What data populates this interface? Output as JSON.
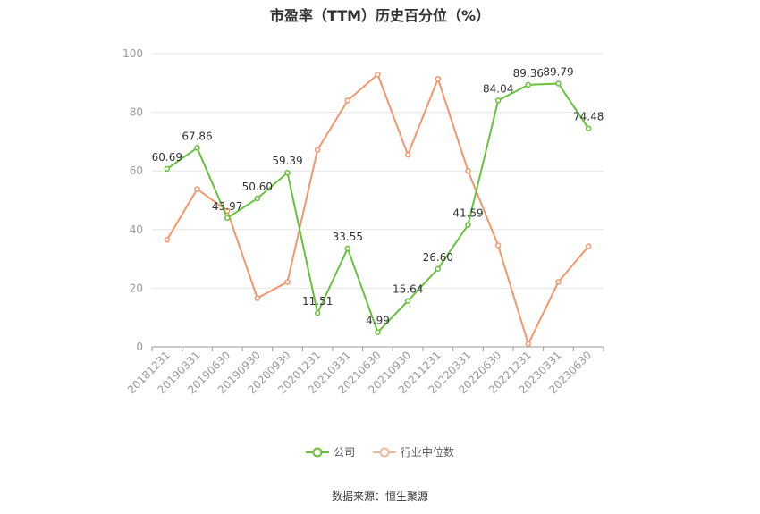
{
  "chart_data": {
    "type": "line",
    "title": "市盈率（TTM）历史百分位（%）",
    "categories": [
      "20181231",
      "20190331",
      "20190630",
      "20190930",
      "20200930",
      "20201231",
      "20210331",
      "20210630",
      "20210930",
      "20211231",
      "20220331",
      "20220630",
      "20221231",
      "20230331",
      "20230630"
    ],
    "series": [
      {
        "name": "公司",
        "color": "#67c23a",
        "values": [
          60.69,
          67.86,
          43.97,
          50.6,
          59.39,
          11.51,
          33.55,
          4.99,
          15.64,
          26.6,
          41.59,
          84.04,
          89.36,
          89.79,
          74.48
        ],
        "show_labels": true
      },
      {
        "name": "行业中位数",
        "color": "#f4956a",
        "values": [
          36.5,
          53.8,
          46.4,
          16.6,
          22.1,
          67.2,
          84.0,
          92.9,
          65.5,
          91.4,
          60.0,
          34.6,
          1.0,
          22.1,
          34.3
        ],
        "show_labels": false
      }
    ],
    "ylim": [
      0,
      100
    ],
    "yticks": [
      0,
      20,
      40,
      60,
      80,
      100
    ],
    "grid": true,
    "legend_position": "bottom"
  },
  "source_label": "数据来源：恒生聚源"
}
